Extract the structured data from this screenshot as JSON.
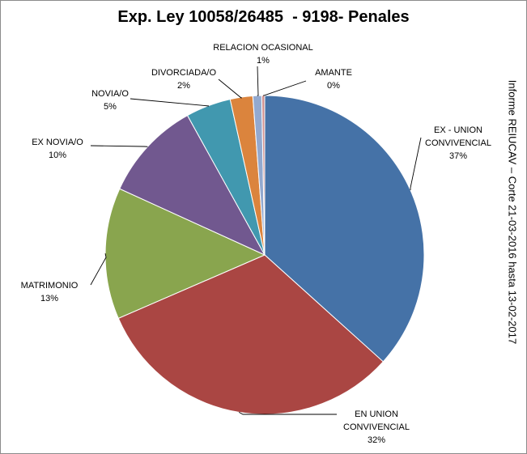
{
  "chart_data": {
    "type": "pie",
    "title": "Exp. Ley 10058/26485  - 9198- Penales",
    "side_note": "Informe REIUCAV – Corte 21-03-2016 hasta 13-02-2017",
    "start_angle_deg": 0,
    "direction": "clockwise",
    "legend": "none",
    "slices": [
      {
        "label": "EX - UNION CONVIVENCIAL",
        "label_lines": [
          "EX - UNION",
          "CONVIVENCIAL"
        ],
        "pct": "37%",
        "value": 36.9,
        "color": "#4572A7"
      },
      {
        "label": "EN UNION CONVIVENCIAL",
        "label_lines": [
          "EN UNION",
          "CONVIVENCIAL"
        ],
        "pct": "32%",
        "value": 32.0,
        "color": "#AA4643"
      },
      {
        "label": "MATRIMONIO",
        "label_lines": [
          "MATRIMONIO"
        ],
        "pct": "13%",
        "value": 13.4,
        "color": "#89A54E"
      },
      {
        "label": "EX NOVIA/O",
        "label_lines": [
          "EX NOVIA/O"
        ],
        "pct": "10%",
        "value": 10.2,
        "color": "#71588F"
      },
      {
        "label": "NOVIA/O",
        "label_lines": [
          "NOVIA/O"
        ],
        "pct": "5%",
        "value": 4.6,
        "color": "#4198AF"
      },
      {
        "label": "DIVORCIADA/O",
        "label_lines": [
          "DIVORCIADA/O"
        ],
        "pct": "2%",
        "value": 2.3,
        "color": "#DB843D"
      },
      {
        "label": "RELACION OCASIONAL",
        "label_lines": [
          "RELACION OCASIONAL"
        ],
        "pct": "1%",
        "value": 0.9,
        "color": "#93A9CF"
      },
      {
        "label": "AMANTE",
        "label_lines": [
          "AMANTE"
        ],
        "pct": "0%",
        "value": 0.3,
        "color": "#D19392"
      }
    ]
  }
}
